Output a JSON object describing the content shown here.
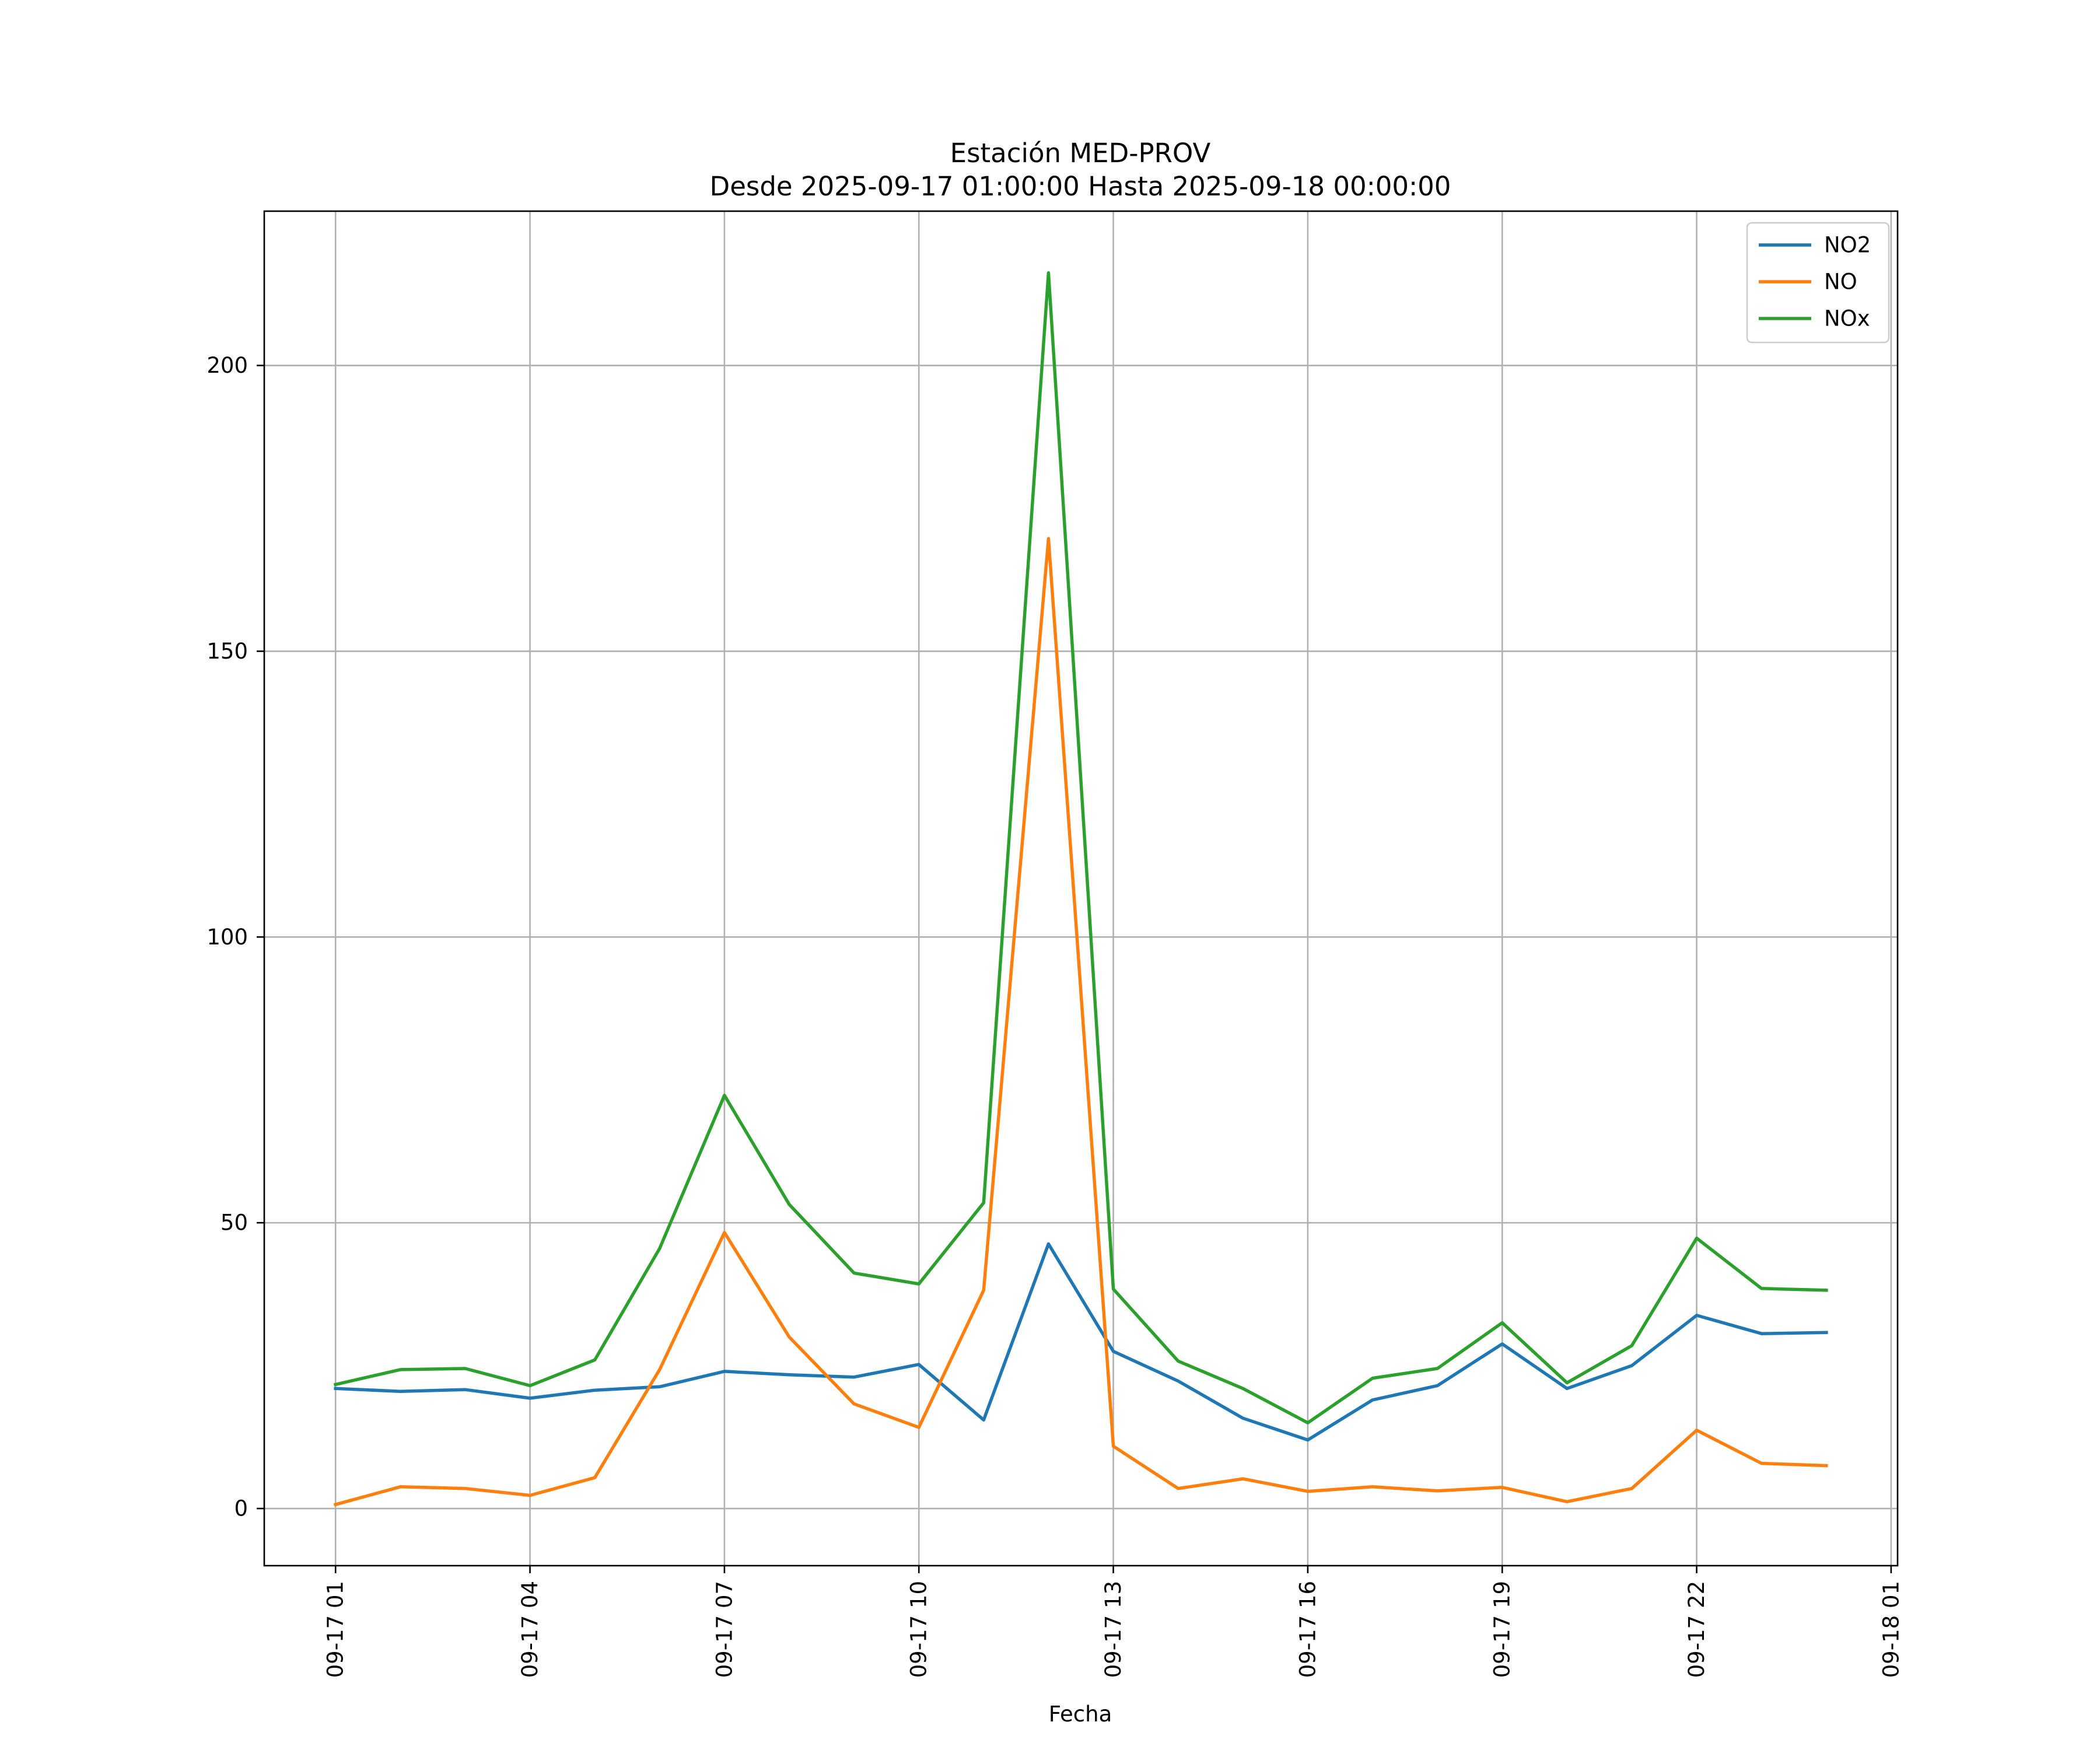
{
  "chart_data": {
    "type": "line",
    "title_line1": "Estación MED-PROV",
    "title_line2": "Desde 2025-09-17 01:00:00 Hasta 2025-09-18 00:00:00",
    "xlabel": "Fecha",
    "ylabel": "",
    "x": [
      "09-17 01",
      "09-17 02",
      "09-17 03",
      "09-17 04",
      "09-17 05",
      "09-17 06",
      "09-17 07",
      "09-17 08",
      "09-17 09",
      "09-17 10",
      "09-17 11",
      "09-17 12",
      "09-17 13",
      "09-17 14",
      "09-17 15",
      "09-17 16",
      "09-17 17",
      "09-17 18",
      "09-17 19",
      "09-17 20",
      "09-17 21",
      "09-17 22",
      "09-17 23",
      "09-18 00"
    ],
    "xticks": [
      "09-17 01",
      "09-17 04",
      "09-17 07",
      "09-17 10",
      "09-17 13",
      "09-17 16",
      "09-17 19",
      "09-17 22",
      "09-18 01"
    ],
    "xlim_hours": [
      -1.1,
      24.1
    ],
    "ylim": [
      -10,
      227
    ],
    "yticks": [
      0,
      50,
      100,
      150,
      200
    ],
    "grid": true,
    "legend_position": "top-right",
    "series": [
      {
        "name": "NO2",
        "color": "#1f77b4",
        "values": [
          21,
          20.5,
          20.8,
          19.3,
          20.7,
          21.3,
          24,
          23.4,
          23,
          25.2,
          15.5,
          46.3,
          27.5,
          22.3,
          15.8,
          12,
          19,
          21.5,
          28.8,
          21,
          25,
          33.8,
          30.6,
          30.8
        ]
      },
      {
        "name": "NO",
        "color": "#ff7f0e",
        "values": [
          0.7,
          3.8,
          3.5,
          2.3,
          5.4,
          24.3,
          48.3,
          30,
          18.3,
          14.2,
          38.2,
          169.7,
          10.9,
          3.5,
          5.2,
          3,
          3.8,
          3.1,
          3.7,
          1.2,
          3.5,
          13.7,
          7.9,
          7.5
        ]
      },
      {
        "name": "NOx",
        "color": "#2ca02c",
        "values": [
          21.7,
          24.3,
          24.5,
          21.5,
          26,
          45.5,
          72.3,
          53.2,
          41.2,
          39.3,
          53.5,
          216.2,
          38.4,
          25.8,
          21,
          15,
          22.8,
          24.5,
          32.5,
          22,
          28.5,
          47.3,
          38.5,
          38.2
        ]
      }
    ]
  }
}
